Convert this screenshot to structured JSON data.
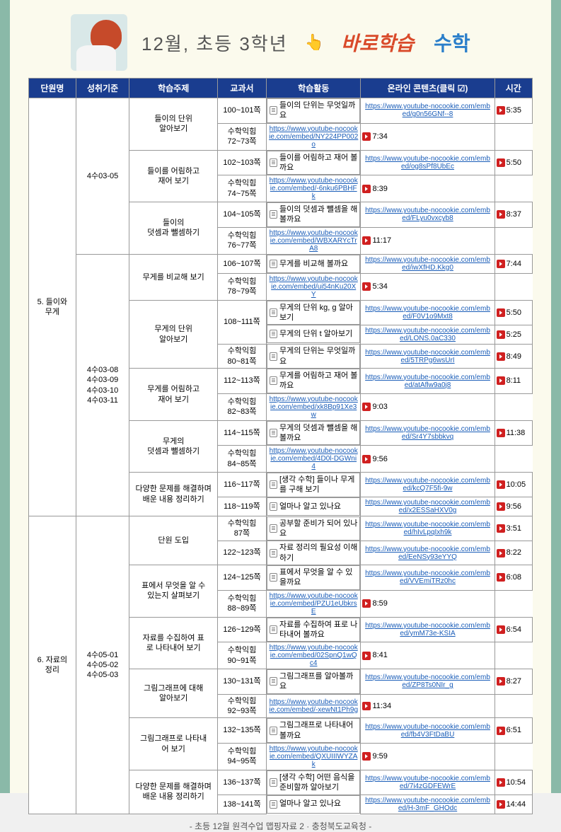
{
  "colors": {
    "header_bg": "#1a3d8f",
    "page_bg": "#fbfaed",
    "side_bar": "#8ab9a8",
    "link": "#1a5db8",
    "play": "#d02020",
    "study_text": "#d94a2a",
    "subject_text": "#2a7eca"
  },
  "header": {
    "title": "12월, 초등 3학년",
    "study": "바로학습",
    "subject": "수학"
  },
  "columns": [
    "단원명",
    "성취기준",
    "학습주제",
    "교과서",
    "학습활동",
    "온라인 콘텐츠(클릭 ☑)",
    "시간"
  ],
  "footer": "- 초등 12월 원격수업 맵핑자료 2 · 충청북도교육청 -",
  "units": [
    {
      "name": "5. 들이와\n무게",
      "groups": [
        {
          "std": "4수03-05",
          "topics": [
            {
              "topic": "들이의 단위\n알아보기",
              "rows": [
                {
                  "book": "100~101쪽",
                  "act": "들이의 단위는 무엇일까요",
                  "link": "https://www.youtube-nocookie.com/embed/g0n56GNf--8",
                  "time": "5:35",
                  "actspan": 2
                },
                {
                  "book": "수학익힘\n72~73쪽",
                  "link": "https://www.youtube-nocookie.com/embed/NY224PP002o",
                  "time": "7:34"
                }
              ]
            },
            {
              "topic": "들이를 어림하고\n재어 보기",
              "rows": [
                {
                  "book": "102~103쪽",
                  "act": "들이를 어림하고 재어 볼까요",
                  "link": "https://www.youtube-nocookie.com/embed/og8sPf8UbEc",
                  "time": "5:50",
                  "actspan": 2
                },
                {
                  "book": "수학익힘\n74~75쪽",
                  "link": "https://www.youtube-nocookie.com/embed/-6nku6PBHFk",
                  "time": "8:39"
                }
              ]
            },
            {
              "topic": "들이의\n덧셈과 뺄셈하기",
              "rows": [
                {
                  "book": "104~105쪽",
                  "act": "들이의 덧셈과 뺄셈을 해 볼까요",
                  "link": "https://www.youtube-nocookie.com/embed/FLyu0vxcyb8",
                  "time": "8:37",
                  "actspan": 2
                },
                {
                  "book": "수학익힘\n76~77쪽",
                  "link": "https://www.youtube-nocookie.com/embed/WBXARYcTrA8",
                  "time": "11:17"
                }
              ]
            }
          ]
        },
        {
          "std": "4수03-08\n4수03-09\n4수03-10\n4수03-11",
          "topics": [
            {
              "topic": "무게를 비교해 보기",
              "rows": [
                {
                  "book": "106~107쪽",
                  "act": "무게를 비교해 볼까요",
                  "link": "https://www.youtube-nocookie.com/embed/iwXfHD.Kkg0",
                  "time": "7:44",
                  "actspan": 2
                },
                {
                  "book": "수학익힘\n78~79쪽",
                  "link": "https://www.youtube-nocookie.com/embed/ui54nKu20XY",
                  "time": "5:34"
                }
              ]
            },
            {
              "topic": "무게의 단위\n알아보기",
              "rows": [
                {
                  "book": "108~111쪽",
                  "act": "무게의 단위 kg, g 알아보기",
                  "link": "https://www.youtube-nocookie.com/embed/F0V1o9Mxt8",
                  "time": "5:50",
                  "bookspan": 2
                },
                {
                  "act": "무게의 단위 t 알아보기",
                  "link": "https://www.youtube-nocookie.com/embed/LONS.0aC330",
                  "time": "5:25"
                },
                {
                  "book": "수학익힘\n80~81쪽",
                  "act": "무게의 단위는 무엇일까요",
                  "link": "https://www.youtube-nocookie.com/embed/5TRPg6wsUrI",
                  "time": "8:49"
                }
              ]
            },
            {
              "topic": "무게를 어림하고\n재어 보기",
              "rows": [
                {
                  "book": "112~113쪽",
                  "act": "무게를 어림하고 재어 볼까요",
                  "link": "https://www.youtube-nocookie.com/embed/atAflw9a0j8",
                  "time": "8:11",
                  "actspan": 2
                },
                {
                  "book": "수학익힘\n82~83쪽",
                  "link": "https://www.youtube-nocookie.com/embed/xk8Bp91Xe3w",
                  "time": "9:03"
                }
              ]
            },
            {
              "topic": "무게의\n덧셈과 뺄셈하기",
              "rows": [
                {
                  "book": "114~115쪽",
                  "act": "무게의 덧셈과 뺄셈을 해 볼까요",
                  "link": "https://www.youtube-nocookie.com/embed/Sr4Y7sbbkvq",
                  "time": "11:38",
                  "actspan": 2
                },
                {
                  "book": "수학익힘\n84~85쪽",
                  "link": "https://www.youtube-nocookie.com/embed/4D0l-DGWni4",
                  "time": "9:56"
                }
              ]
            },
            {
              "topic": "다양한 문제를 해결하며\n배운 내용 정리하기",
              "rows": [
                {
                  "book": "116~117쪽",
                  "act": "[생각 수학] 들이나 무게를 구해 보기",
                  "link": "https://www.youtube-nocookie.com/embed/kcQ7F5fi-9w",
                  "time": "10:05"
                },
                {
                  "book": "118~119쪽",
                  "act": "얼마나 알고 있나요",
                  "link": "https://www.youtube-nocookie.com/embed/x2ESSaHXV0g",
                  "time": "9:56"
                }
              ]
            }
          ]
        }
      ]
    },
    {
      "name": "6. 자료의\n정리",
      "groups": [
        {
          "std": "4수05-01\n4수05-02\n4수05-03",
          "topics": [
            {
              "topic": "단원 도입",
              "rows": [
                {
                  "book": "수학익힘\n87쪽",
                  "act": "공부할 준비가 되어 있나요",
                  "link": "https://www.youtube-nocookie.com/embed/hIvLpqIxh9k",
                  "time": "3:51"
                },
                {
                  "book": "122~123쪽",
                  "act": "자료 정리의 필요성 이해하기",
                  "link": "https://www.youtube-nocookie.com/embed/EeNSy93eYYQ",
                  "time": "8:22"
                }
              ]
            },
            {
              "topic": "표에서 무엇을 알 수\n있는지 살펴보기",
              "rows": [
                {
                  "book": "124~125쪽",
                  "act": "표에서 무엇을 알 수 있을까요",
                  "link": "https://www.youtube-nocookie.com/embed/VVEmiTRz0hc",
                  "time": "6:08",
                  "actspan": 2
                },
                {
                  "book": "수학익힘\n88~89쪽",
                  "link": "https://www.youtube-nocookie.com/embed/PZU1eUbkrsE",
                  "time": "8:59"
                }
              ]
            },
            {
              "topic": "자료를 수집하여 표\n로 나타내어 보기",
              "rows": [
                {
                  "book": "126~129쪽",
                  "act": "자료를 수집하여 표로 나타내어 볼까요",
                  "link": "https://www.youtube-nocookie.com/embed/ymM73e-KSIA",
                  "time": "6:54",
                  "actspan": 2
                },
                {
                  "book": "수학익힘\n90~91쪽",
                  "link": "https://www.youtube-nocookie.com/embed/02SpnQ1wQc4",
                  "time": "8:41"
                }
              ]
            },
            {
              "topic": "그림그래프에 대해\n알아보기",
              "rows": [
                {
                  "book": "130~131쪽",
                  "act": "그림그래프를 알아볼까요",
                  "link": "https://www.youtube-nocookie.com/embed/ZP8Ts0NIr_g",
                  "time": "8:27",
                  "actspan": 2
                },
                {
                  "book": "수학익힘\n92~93쪽",
                  "link": "https://www.youtube-nocookie.com/embed/-xewNt1Ph9g",
                  "time": "11:34"
                }
              ]
            },
            {
              "topic": "그림그래프로 나타내\n어 보기",
              "rows": [
                {
                  "book": "132~135쪽",
                  "act": "그림그래프로 나타내어 볼까요",
                  "link": "https://www.youtube-nocookie.com/embed/fb4V3FtDaBU",
                  "time": "6:51",
                  "actspan": 2
                },
                {
                  "book": "수학익힘\n94~95쪽",
                  "link": "https://www.youtube-nocookie.com/embed/QXUIIIWYZAk",
                  "time": "9:59"
                }
              ]
            },
            {
              "topic": "다양한 문제를 해결하며\n배운 내용 정리하기",
              "rows": [
                {
                  "book": "136~137쪽",
                  "act": "[생각 수학] 어떤 음식을 준비할까 알아보기",
                  "link": "https://www.youtube-nocookie.com/embed/7i4zGDFEWrE",
                  "time": "10:54"
                },
                {
                  "book": "138~141쪽",
                  "act": "얼마나 알고 있나요",
                  "link": "https://www.youtube-nocookie.com/embed/H-3mF_GHOdc",
                  "time": "14:44"
                }
              ]
            }
          ]
        }
      ]
    }
  ]
}
